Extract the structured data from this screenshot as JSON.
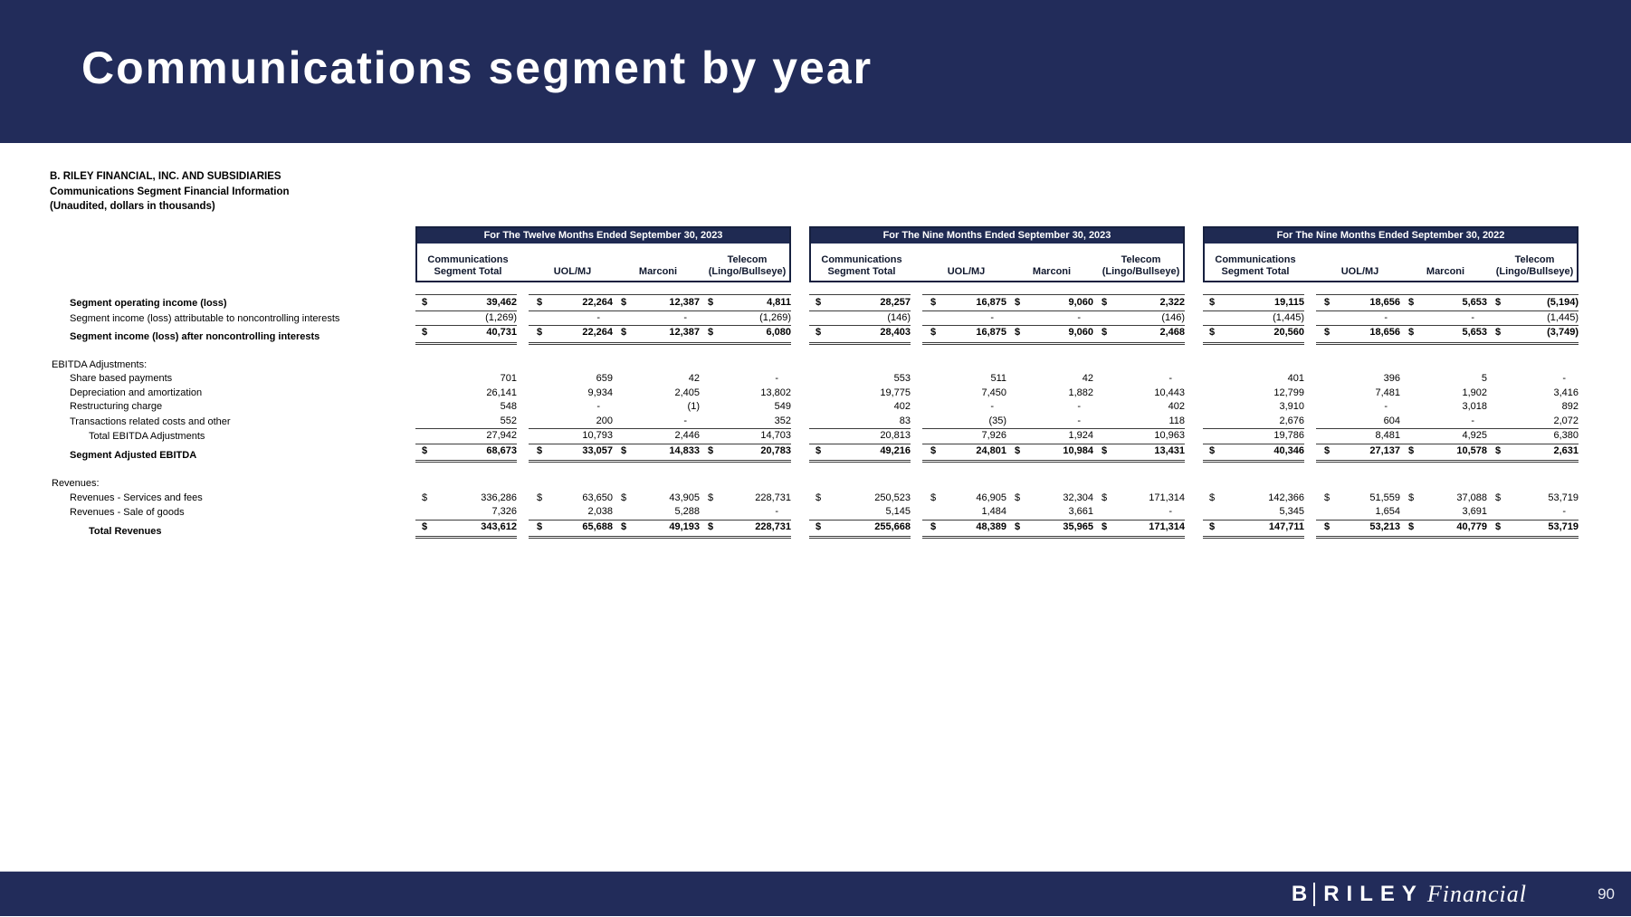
{
  "banner": {
    "title": "Communications segment by year"
  },
  "intro": {
    "lines": [
      "B. RILEY FINANCIAL, INC. AND SUBSIDIARIES",
      "Communications Segment Financial Information",
      "(Unaudited, dollars in thousands)"
    ]
  },
  "colors": {
    "navy": "#222C5A",
    "band_navy": "#1F2A52",
    "rule": "#3c3c3c"
  },
  "tables": {
    "groups": [
      {
        "period": "For The Twelve Months Ended September 30, 2023"
      },
      {
        "period": "For The Nine Months Ended September 30, 2023"
      },
      {
        "period": "For The Nine Months Ended September 30, 2022"
      }
    ],
    "column_headers": {
      "segment_total": [
        "Communications",
        "Segment Total"
      ],
      "uol_mj": "UOL/MJ",
      "marconi": "Marconi",
      "telecom": [
        "Telecom",
        "(Lingo/Bullseye)"
      ]
    },
    "rows": [
      {
        "label": "Segment operating income (loss)",
        "indent": 1,
        "bold": true,
        "dollar": true,
        "border": "top-bottom",
        "values": [
          [
            "39,462",
            "22,264",
            "12,387",
            "4,811"
          ],
          [
            "28,257",
            "16,875",
            "9,060",
            "2,322"
          ],
          [
            "19,115",
            "18,656",
            "5,653",
            "(5,194)"
          ]
        ]
      },
      {
        "label": "Segment income (loss) attributable to noncontrolling interests",
        "indent": 1,
        "border": "bottom",
        "values": [
          [
            "(1,269)",
            "-",
            "-",
            "(1,269)"
          ],
          [
            "(146)",
            "-",
            "-",
            "(146)"
          ],
          [
            "(1,445)",
            "-",
            "-",
            "(1,445)"
          ]
        ]
      },
      {
        "label": "Segment income (loss) after noncontrolling interests",
        "indent": 1,
        "bold": true,
        "dollar": true,
        "border": "double",
        "values": [
          [
            "40,731",
            "22,264",
            "12,387",
            "6,080"
          ],
          [
            "28,403",
            "16,875",
            "9,060",
            "2,468"
          ],
          [
            "20,560",
            "18,656",
            "5,653",
            "(3,749)"
          ]
        ]
      },
      {
        "type": "spacer1"
      },
      {
        "label": "EBITDA Adjustments:",
        "indent": 0,
        "type": "section"
      },
      {
        "label": "Share based payments",
        "indent": 1,
        "values": [
          [
            "701",
            "659",
            "42",
            "-"
          ],
          [
            "553",
            "511",
            "42",
            "-"
          ],
          [
            "401",
            "396",
            "5",
            "-"
          ]
        ]
      },
      {
        "label": "Depreciation and amortization",
        "indent": 1,
        "values": [
          [
            "26,141",
            "9,934",
            "2,405",
            "13,802"
          ],
          [
            "19,775",
            "7,450",
            "1,882",
            "10,443"
          ],
          [
            "12,799",
            "7,481",
            "1,902",
            "3,416"
          ]
        ]
      },
      {
        "label": "Restructuring charge",
        "indent": 1,
        "values": [
          [
            "548",
            "-",
            "(1)",
            "549"
          ],
          [
            "402",
            "-",
            "-",
            "402"
          ],
          [
            "3,910",
            "-",
            "3,018",
            "892"
          ]
        ]
      },
      {
        "label": "Transactions related costs and other",
        "indent": 1,
        "border": "bottom",
        "values": [
          [
            "552",
            "200",
            "-",
            "352"
          ],
          [
            "83",
            "(35)",
            "-",
            "118"
          ],
          [
            "2,676",
            "604",
            "-",
            "2,072"
          ]
        ]
      },
      {
        "label": "Total EBITDA Adjustments",
        "indent": 2,
        "border": "bottom",
        "values": [
          [
            "27,942",
            "10,793",
            "2,446",
            "14,703"
          ],
          [
            "20,813",
            "7,926",
            "1,924",
            "10,963"
          ],
          [
            "19,786",
            "8,481",
            "4,925",
            "6,380"
          ]
        ]
      },
      {
        "label": "Segment Adjusted EBITDA",
        "indent": 1,
        "bold": true,
        "dollar": true,
        "border": "double",
        "values": [
          [
            "68,673",
            "33,057",
            "14,833",
            "20,783"
          ],
          [
            "49,216",
            "24,801",
            "10,984",
            "13,431"
          ],
          [
            "40,346",
            "27,137",
            "10,578",
            "2,631"
          ]
        ]
      },
      {
        "type": "spacer2"
      },
      {
        "label": "Revenues:",
        "indent": 0,
        "type": "section"
      },
      {
        "label": "Revenues - Services and fees",
        "indent": 1,
        "dollar": true,
        "values": [
          [
            "336,286",
            "63,650",
            "43,905",
            "228,731"
          ],
          [
            "250,523",
            "46,905",
            "32,304",
            "171,314"
          ],
          [
            "142,366",
            "51,559",
            "37,088",
            "53,719"
          ]
        ]
      },
      {
        "label": "Revenues - Sale of goods",
        "indent": 1,
        "border": "bottom",
        "values": [
          [
            "7,326",
            "2,038",
            "5,288",
            "-"
          ],
          [
            "5,145",
            "1,484",
            "3,661",
            "-"
          ],
          [
            "5,345",
            "1,654",
            "3,691",
            "-"
          ]
        ]
      },
      {
        "label": "Total Revenues",
        "indent": 2,
        "bold": true,
        "dollar": true,
        "border": "double",
        "values": [
          [
            "343,612",
            "65,688",
            "49,193",
            "228,731"
          ],
          [
            "255,668",
            "48,389",
            "35,965",
            "171,314"
          ],
          [
            "147,711",
            "53,213",
            "40,779",
            "53,719"
          ]
        ]
      }
    ]
  },
  "footer": {
    "logo": {
      "b": "B",
      "riley": "RILEY",
      "financial": "Financial"
    },
    "page_number": "90"
  }
}
